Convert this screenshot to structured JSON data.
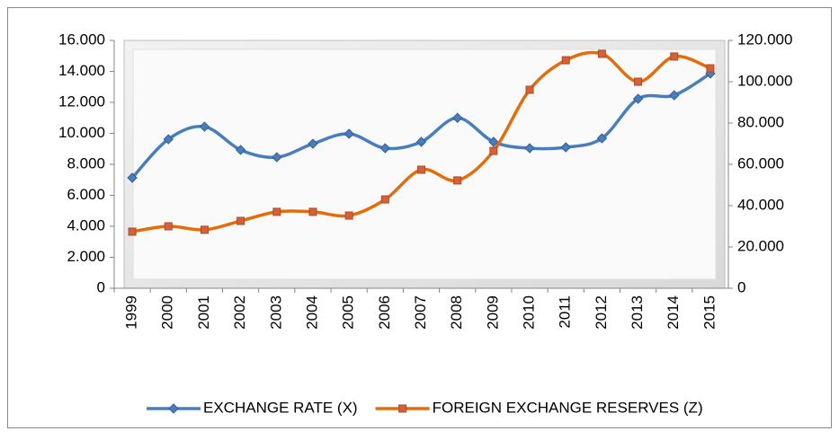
{
  "chart_data": {
    "type": "line",
    "categories": [
      "1999",
      "2000",
      "2001",
      "2002",
      "2003",
      "2004",
      "2005",
      "2006",
      "2007",
      "2008",
      "2009",
      "2010",
      "2011",
      "2012",
      "2013",
      "2014",
      "2015"
    ],
    "series": [
      {
        "name": "EXCHANGE RATE (X)",
        "color": "#4a7ebb",
        "axis": "y",
        "values": [
          7.13,
          9.62,
          10.43,
          8.93,
          8.46,
          9.33,
          9.97,
          9.04,
          9.45,
          11.0,
          9.45,
          9.04,
          9.1,
          9.68,
          12.23,
          12.46,
          13.86
        ]
      },
      {
        "name": "FOREIGN EXCHANGE RESERVES (Z)",
        "color": "#e46c0a",
        "axis": "y2",
        "values": [
          27.4,
          30.0,
          28.3,
          32.6,
          37.0,
          37.0,
          35.2,
          43.0,
          57.4,
          52.2,
          66.5,
          96.1,
          110.4,
          113.5,
          100.0,
          112.2,
          106.5
        ]
      }
    ],
    "ylim": [
      0,
      16
    ],
    "yticks": [
      0,
      {
        "value": 2,
        "label": "2.000"
      },
      {
        "value": 4,
        "label": "4.000"
      },
      {
        "value": 6,
        "label": "6.000"
      },
      {
        "value": 8,
        "label": "8.000"
      },
      {
        "value": 10,
        "label": "10.000"
      },
      {
        "value": 12,
        "label": "12.000"
      },
      {
        "value": 14,
        "label": "14.000"
      },
      {
        "value": 16,
        "label": "16.000"
      }
    ],
    "y2lim": [
      0,
      120
    ],
    "y2ticks": [
      0,
      {
        "value": 20,
        "label": "20.000"
      },
      {
        "value": 40,
        "label": "40.000"
      },
      {
        "value": 60,
        "label": "60.000"
      },
      {
        "value": 80,
        "label": "80.000"
      },
      {
        "value": 100,
        "label": "100.000"
      },
      {
        "value": 120,
        "label": "120.000"
      }
    ],
    "smooth": true,
    "legend": "bottom"
  }
}
